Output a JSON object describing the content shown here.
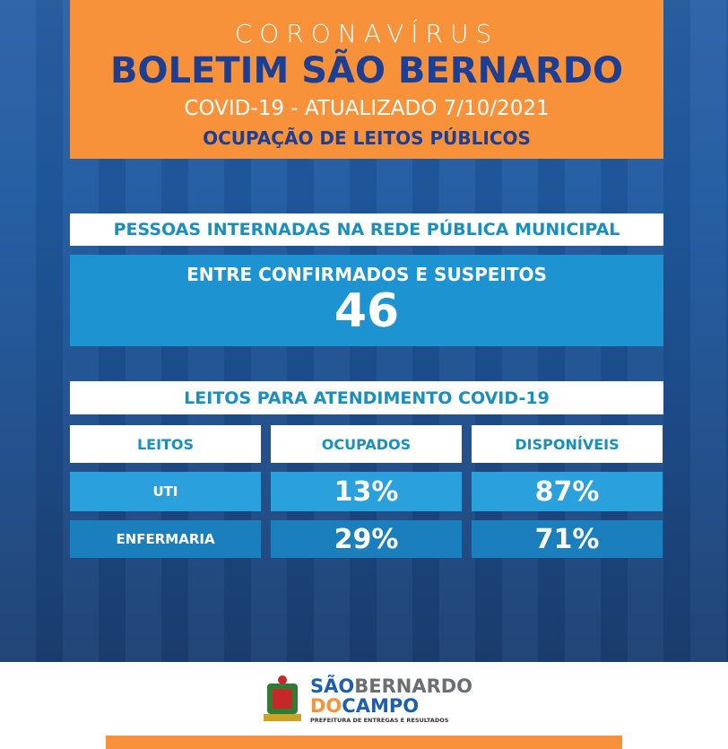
{
  "header": {
    "kicker": "CORONAVÍRUS",
    "title": "BOLETIM SÃO BERNARDO",
    "subtitle": "COVID-19 - ATUALIZADO 7/10/2021",
    "section": "OCUPAÇÃO DE LEITOS PÚBLICOS"
  },
  "internados": {
    "title": "PESSOAS INTERNADAS NA REDE PÚBLICA MUNICIPAL",
    "label": "ENTRE CONFIRMADOS E SUSPEITOS",
    "value": "46"
  },
  "table": {
    "title": "LEITOS PARA ATENDIMENTO COVID-19",
    "columns": [
      "LEITOS",
      "OCUPADOS",
      "DISPONÍVEIS"
    ],
    "rows": [
      [
        "UTI",
        "13%",
        "87%"
      ],
      [
        "ENFERMARIA",
        "29%",
        "71%"
      ]
    ]
  },
  "logo": {
    "sao": "SÃO",
    "bernardo": "BERNARDO",
    "do": "DO",
    "campo": "CAMPO",
    "tagline": "PREFEITURA DE ENTREGAS E RESULTADOS"
  }
}
